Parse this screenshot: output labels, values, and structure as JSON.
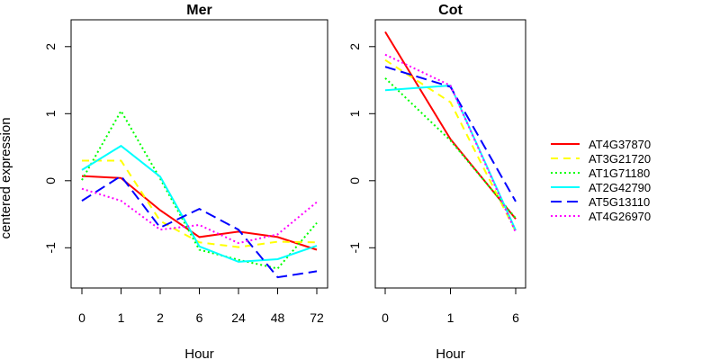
{
  "ylabel": "centered expression",
  "chart_data": [
    {
      "type": "line",
      "title": "Mer",
      "xlabel": "Hour",
      "categories": [
        "0",
        "1",
        "2",
        "6",
        "24",
        "48",
        "72"
      ],
      "ylim": [
        -1.6,
        2.4
      ],
      "yticks": [
        -1,
        0,
        1,
        2
      ],
      "series": [
        {
          "name": "AT4G37870",
          "color": "#ff0000",
          "dash": "solid",
          "values": [
            0.07,
            0.04,
            -0.44,
            -0.84,
            -0.76,
            -0.84,
            -1.03
          ]
        },
        {
          "name": "AT3G21720",
          "color": "#ffff00",
          "dash": "dashed",
          "values": [
            0.3,
            0.3,
            -0.6,
            -0.92,
            -0.99,
            -0.91,
            -0.92
          ]
        },
        {
          "name": "AT1G71180",
          "color": "#00ff00",
          "dash": "dotted",
          "values": [
            0.01,
            1.04,
            0.03,
            -1.03,
            -1.18,
            -1.31,
            -0.63
          ]
        },
        {
          "name": "AT2G42790",
          "color": "#00ffff",
          "dash": "solid",
          "values": [
            0.16,
            0.52,
            0.06,
            -0.98,
            -1.21,
            -1.17,
            -0.97
          ]
        },
        {
          "name": "AT5G13110",
          "color": "#0000ff",
          "dash": "longdash",
          "values": [
            -0.3,
            0.07,
            -0.7,
            -0.42,
            -0.73,
            -1.44,
            -1.35
          ]
        },
        {
          "name": "AT4G26970",
          "color": "#ff00ff",
          "dash": "dotted",
          "values": [
            -0.12,
            -0.3,
            -0.73,
            -0.66,
            -0.93,
            -0.8,
            -0.32
          ]
        }
      ]
    },
    {
      "type": "line",
      "title": "Cot",
      "xlabel": "Hour",
      "categories": [
        "0",
        "1",
        "6"
      ],
      "ylim": [
        -1.6,
        2.4
      ],
      "yticks": [
        -1,
        0,
        1,
        2
      ],
      "series": [
        {
          "name": "AT4G37870",
          "color": "#ff0000",
          "dash": "solid",
          "values": [
            2.22,
            0.62,
            -0.57
          ]
        },
        {
          "name": "AT3G21720",
          "color": "#ffff00",
          "dash": "dashed",
          "values": [
            1.8,
            1.17,
            -0.76
          ]
        },
        {
          "name": "AT1G71180",
          "color": "#00ff00",
          "dash": "dotted",
          "values": [
            1.53,
            0.6,
            -0.56
          ]
        },
        {
          "name": "AT2G42790",
          "color": "#00ffff",
          "dash": "solid",
          "values": [
            1.35,
            1.42,
            -0.74
          ]
        },
        {
          "name": "AT5G13110",
          "color": "#0000ff",
          "dash": "longdash",
          "values": [
            1.7,
            1.4,
            -0.31
          ]
        },
        {
          "name": "AT4G26970",
          "color": "#ff00ff",
          "dash": "dotted",
          "values": [
            1.88,
            1.42,
            -0.77
          ]
        }
      ]
    }
  ],
  "legend": {
    "placement": "right",
    "entries": [
      {
        "label": "AT4G37870",
        "color": "#ff0000",
        "dash": "solid"
      },
      {
        "label": "AT3G21720",
        "color": "#ffff00",
        "dash": "dashed"
      },
      {
        "label": "AT1G71180",
        "color": "#00ff00",
        "dash": "dotted"
      },
      {
        "label": "AT2G42790",
        "color": "#00ffff",
        "dash": "solid"
      },
      {
        "label": "AT5G13110",
        "color": "#0000ff",
        "dash": "longdash"
      },
      {
        "label": "AT4G26970",
        "color": "#ff00ff",
        "dash": "dotted"
      }
    ]
  }
}
